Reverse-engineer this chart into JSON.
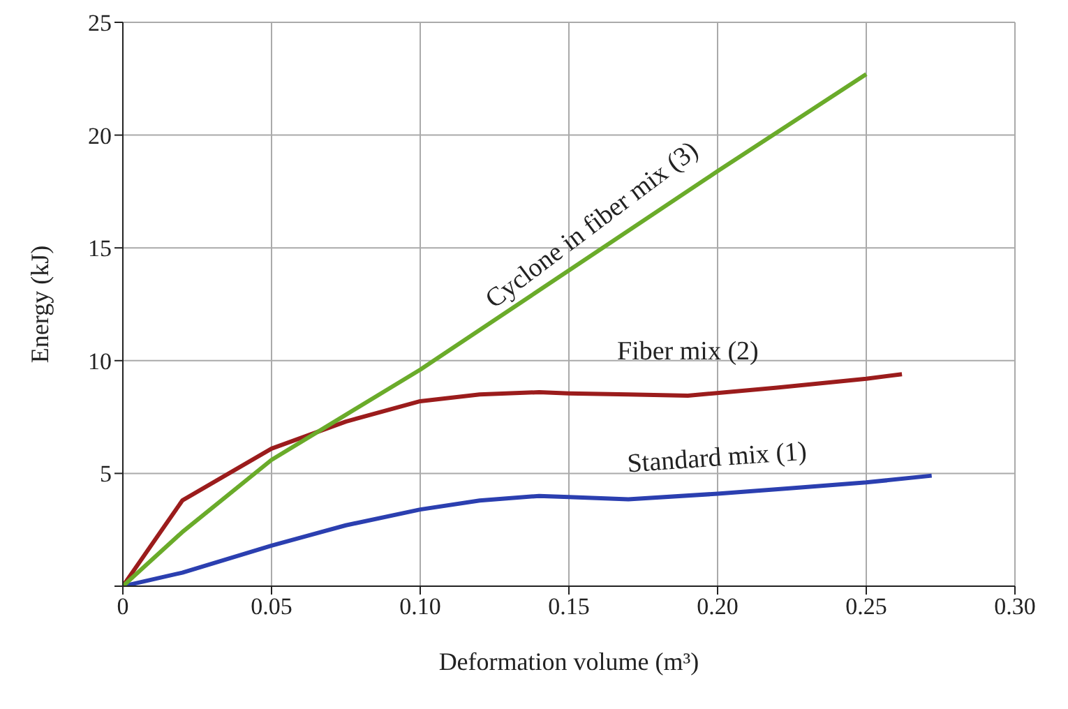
{
  "chart_data": {
    "type": "line",
    "xlabel": "Deformation volume (m³)",
    "ylabel": "Energy (kJ)",
    "xlim": [
      0,
      0.3
    ],
    "xticks": [
      0,
      0.05,
      {
        "value": 0.1,
        "label": "0.10"
      },
      0.15,
      {
        "value": 0.2,
        "label": "0.20"
      },
      0.25,
      {
        "value": 0.3,
        "label": "0.30"
      }
    ],
    "ylim": [
      0,
      25
    ],
    "yticks": [
      {
        "value": 0,
        "label": null
      },
      5,
      10,
      15,
      20,
      25
    ],
    "grid": true,
    "legend": false,
    "marker": "none",
    "line_style": "solid",
    "series": [
      {
        "name": "Standard mix (1)",
        "color": "#2b3fb0",
        "x": [
          0,
          0.02,
          0.05,
          0.075,
          0.1,
          0.12,
          0.14,
          0.15,
          0.17,
          0.2,
          0.225,
          0.25,
          0.272
        ],
        "values": [
          0,
          0.6,
          1.8,
          2.7,
          3.4,
          3.8,
          4.0,
          3.95,
          3.85,
          4.1,
          4.35,
          4.6,
          4.9
        ]
      },
      {
        "name": "Fiber mix (2)",
        "color": "#9b1c1c",
        "x": [
          0,
          0.02,
          0.05,
          0.075,
          0.1,
          0.12,
          0.14,
          0.15,
          0.17,
          0.19,
          0.22,
          0.25,
          0.262
        ],
        "values": [
          0,
          3.8,
          6.1,
          7.3,
          8.2,
          8.5,
          8.6,
          8.55,
          8.5,
          8.45,
          8.8,
          9.2,
          9.4
        ]
      },
      {
        "name": "Cyclone in fiber mix (3)",
        "color": "#6aab2a",
        "x": [
          0,
          0.02,
          0.05,
          0.075,
          0.1,
          0.15,
          0.2,
          0.25
        ],
        "values": [
          0,
          2.4,
          5.6,
          7.6,
          9.6,
          14.0,
          18.4,
          22.7
        ]
      }
    ]
  }
}
